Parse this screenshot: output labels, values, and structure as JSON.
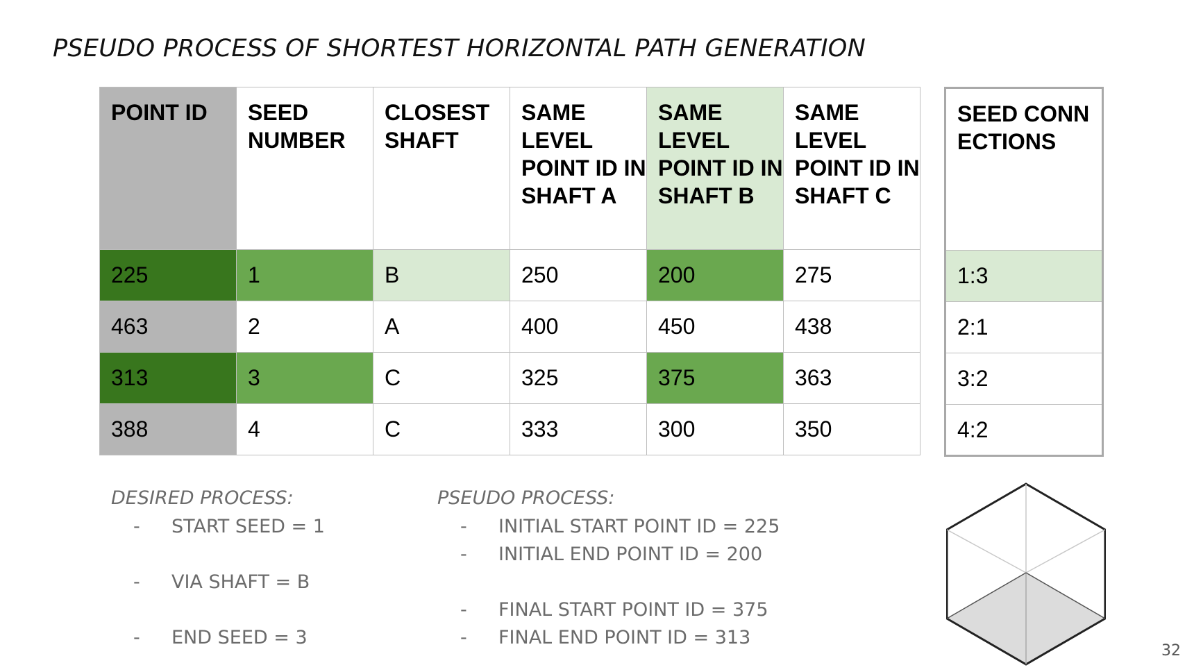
{
  "title": "PSEUDO PROCESS OF SHORTEST HORIZONTAL PATH GENERATION",
  "colors": {
    "gray_header": "#b5b5b5",
    "dark_green": "#38761d",
    "mid_green": "#6aa84f",
    "light_green": "#d9ead3"
  },
  "table": {
    "headers": [
      "POINT ID",
      "SEED NUMBER",
      "CLOSEST SHAFT",
      "SAME LEVEL POINT ID IN SHAFT A",
      "SAME LEVEL POINT ID IN SHAFT B",
      "SAME LEVEL POINT ID IN SHAFT C"
    ],
    "rows": [
      [
        "225",
        "1",
        "B",
        "250",
        "200",
        "275"
      ],
      [
        "463",
        "2",
        "A",
        "400",
        "450",
        "438"
      ],
      [
        "313",
        "3",
        "C",
        "325",
        "375",
        "363"
      ],
      [
        "388",
        "4",
        "C",
        "333",
        "300",
        "350"
      ]
    ]
  },
  "connections": {
    "header": "SEED CONNECTIONS",
    "rows": [
      "1:3",
      "2:1",
      "3:2",
      "4:2"
    ]
  },
  "desired": {
    "title": "DESIRED PROCESS:",
    "items": [
      "START SEED = 1",
      "VIA SHAFT = B",
      "END SEED = 3"
    ]
  },
  "pseudo": {
    "title": "PSEUDO PROCESS:",
    "items": [
      "INITIAL START POINT ID = 225",
      "INITIAL END POINT ID = 200",
      "FINAL START POINT ID = 375",
      "FINAL END POINT ID = 313"
    ]
  },
  "dash": "-",
  "page_number": "32",
  "cube_icon": "cube-icon"
}
